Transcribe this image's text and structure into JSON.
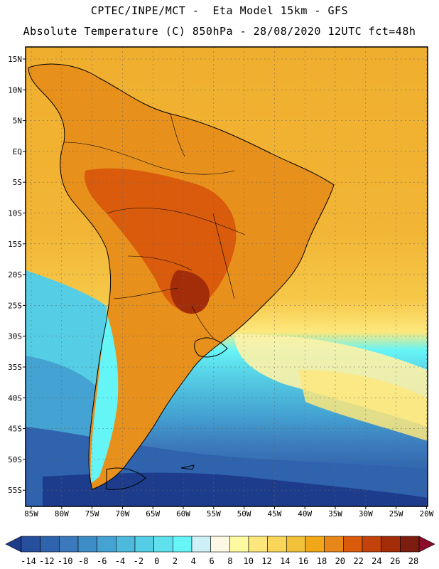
{
  "header": {
    "title_line1": "CPTEC/INPE/MCT -  Eta Model 15km - GFS",
    "title_line2": "Absolute Temperature (C) 850hPa - 28/08/2020 12UTC fct=48h"
  },
  "map": {
    "lat_labels": [
      "15N",
      "10N",
      "5N",
      "EQ",
      "5S",
      "10S",
      "15S",
      "20S",
      "25S",
      "30S",
      "35S",
      "40S",
      "45S",
      "50S",
      "55S"
    ],
    "lon_labels": [
      "85W",
      "80W",
      "75W",
      "70W",
      "65W",
      "60W",
      "55W",
      "50W",
      "45W",
      "40W",
      "35W",
      "30W",
      "25W",
      "20W"
    ]
  },
  "colorbar": {
    "labels": [
      "-14",
      "-12",
      "-10",
      "-8",
      "-6",
      "-4",
      "-2",
      "0",
      "2",
      "4",
      "6",
      "8",
      "10",
      "12",
      "14",
      "16",
      "18",
      "20",
      "22",
      "24",
      "26",
      "28"
    ],
    "colors": [
      "#1e3c8c",
      "#284f9e",
      "#2f63ad",
      "#3c79bb",
      "#3e8dc6",
      "#44a3d2",
      "#4fb9db",
      "#55cde4",
      "#5fe0ec",
      "#66f5f7",
      "#cdf1f7",
      "#fcf8e3",
      "#fdf9a0",
      "#fde77c",
      "#f9d55a",
      "#f2c13a",
      "#f0a818",
      "#e7871a",
      "#d95b0b",
      "#c2420c",
      "#a32c09",
      "#7c1d10",
      "#8b0d2b"
    ]
  },
  "colors": {
    "ocean_north": "#f0b030",
    "land": "#dc7a1a",
    "coastline": "#000000"
  }
}
